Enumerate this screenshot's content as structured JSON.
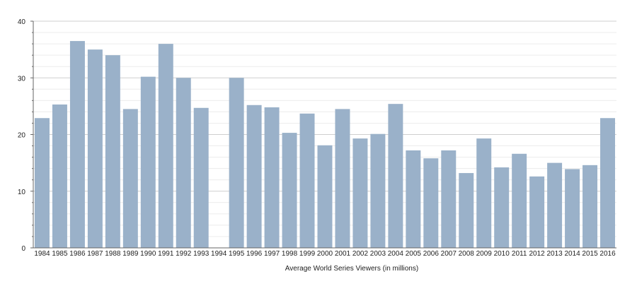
{
  "chart_data": {
    "type": "bar",
    "title": "",
    "xlabel": "Average World Series Viewers (in millions)",
    "ylabel": "",
    "ylim": [
      0,
      40
    ],
    "yticks": [
      0,
      10,
      20,
      30,
      40
    ],
    "grid": true,
    "bar_color": "#9ab1c9",
    "categories": [
      "1984",
      "1985",
      "1986",
      "1987",
      "1988",
      "1989",
      "1990",
      "1991",
      "1992",
      "1993",
      "1994",
      "1995",
      "1996",
      "1997",
      "1998",
      "1999",
      "2000",
      "2001",
      "2002",
      "2003",
      "2004",
      "2005",
      "2006",
      "2007",
      "2008",
      "2009",
      "2010",
      "2011",
      "2012",
      "2013",
      "2014",
      "2015",
      "2016"
    ],
    "values": [
      22.9,
      25.3,
      36.5,
      35.0,
      34.0,
      24.5,
      30.2,
      36.0,
      30.0,
      24.7,
      null,
      30.0,
      25.2,
      24.8,
      20.3,
      23.7,
      18.1,
      24.5,
      19.3,
      20.1,
      25.4,
      17.2,
      15.8,
      17.2,
      13.2,
      19.3,
      14.2,
      16.6,
      12.6,
      15.0,
      13.9,
      14.6,
      22.9
    ]
  }
}
